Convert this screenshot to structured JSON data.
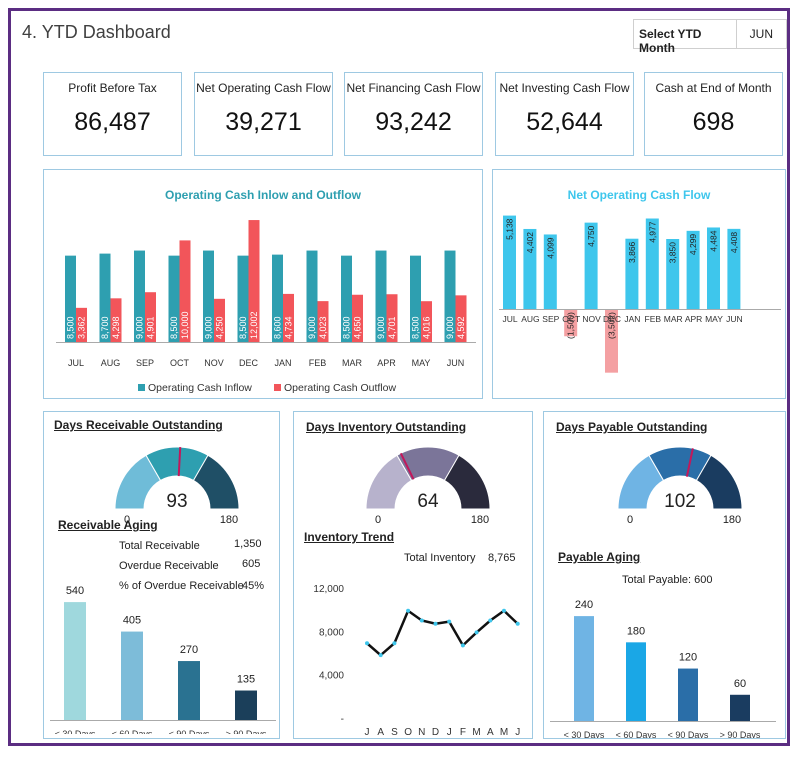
{
  "header": {
    "title": "4. YTD Dashboard",
    "select_label": "Select YTD Month",
    "selected_month": "JUN"
  },
  "kpis": [
    {
      "label": "Profit Before Tax",
      "value": "86,487"
    },
    {
      "label": "Net Operating Cash Flow",
      "value": "39,271"
    },
    {
      "label": "Net Financing Cash Flow",
      "value": "93,242"
    },
    {
      "label": "Net Investing Cash Flow",
      "value": "52,644"
    },
    {
      "label": "Cash at End of Month",
      "value": "698"
    }
  ],
  "colors": {
    "teal": "#2e9fb0",
    "red": "#f2555a",
    "cyan": "#3ec6ec",
    "pink": "#f4a0a2",
    "frame": "#5b2d82"
  },
  "chart_data": [
    {
      "type": "bar",
      "title": "Operating Cash Inlow and Outflow",
      "categories": [
        "JUL",
        "AUG",
        "SEP",
        "OCT",
        "NOV",
        "DEC",
        "JAN",
        "FEB",
        "MAR",
        "APR",
        "MAY",
        "JUN"
      ],
      "series": [
        {
          "name": "Operating Cash Inflow",
          "values": [
            8500,
            8700,
            9000,
            8500,
            9000,
            8500,
            8600,
            9000,
            8500,
            9000,
            8500,
            9000
          ],
          "labels": [
            "8,500",
            "8,700",
            "9,000",
            "8,500",
            "9,000",
            "8,500",
            "8,600",
            "9,000",
            "8,500",
            "9,000",
            "8,500",
            "9,000"
          ]
        },
        {
          "name": "Operating Cash Outflow",
          "values": [
            3362,
            4298,
            4901,
            10000,
            4250,
            12002,
            4734,
            4023,
            4650,
            4701,
            4016,
            4592
          ],
          "labels": [
            "3,362",
            "4,298",
            "4,901",
            "10,000",
            "4,250",
            "12,002",
            "4,734",
            "4,023",
            "4,650",
            "4,701",
            "4,016",
            "4,592"
          ]
        }
      ],
      "ylim": [
        0,
        12500
      ],
      "legend": "bottom"
    },
    {
      "type": "bar",
      "title": "Net Operating Cash Flow",
      "categories": [
        "JUL",
        "AUG",
        "SEP",
        "OCT",
        "NOV",
        "DEC",
        "JAN",
        "FEB",
        "MAR",
        "APR",
        "MAY",
        "JUN"
      ],
      "values": [
        5138,
        4402,
        4099,
        -1500,
        4750,
        -3502,
        3866,
        4977,
        3850,
        4299,
        4484,
        4408
      ],
      "labels": [
        "5,138",
        "4,402",
        "4,099",
        "(1,500)",
        "4,750",
        "(3,502)",
        "3,866",
        "4,977",
        "3,850",
        "4,299",
        "4,484",
        "4,408"
      ],
      "ylim": [
        -4000,
        5500
      ]
    },
    {
      "type": "bar",
      "title": "Receivable Aging",
      "categories": [
        "< 30 Days",
        "< 60 Days",
        "< 90 Days",
        "> 90 Days"
      ],
      "values": [
        540,
        405,
        270,
        135
      ],
      "labels": [
        "540",
        "405",
        "270",
        "135"
      ],
      "colors": [
        "#9fd8dd",
        "#7dbcd9",
        "#2a7291",
        "#1b3f5a"
      ],
      "ylim": [
        0,
        600
      ]
    },
    {
      "type": "line",
      "title": "Inventory Trend",
      "x": [
        "J",
        "A",
        "S",
        "O",
        "N",
        "D",
        "J",
        "F",
        "M",
        "A",
        "M",
        "J"
      ],
      "values": [
        6900,
        5800,
        6900,
        9900,
        9000,
        8700,
        8900,
        6700,
        7900,
        9000,
        9900,
        8700
      ],
      "yticks": [
        "12,000",
        "8,000",
        "4,000",
        "-"
      ],
      "ylim": [
        0,
        12000
      ]
    },
    {
      "type": "bar",
      "title": "Payable Aging",
      "categories": [
        "< 30 Days",
        "< 60 Days",
        "< 90 Days",
        "> 90 Days"
      ],
      "values": [
        240,
        180,
        120,
        60
      ],
      "labels": [
        "240",
        "180",
        "120",
        "60"
      ],
      "colors": [
        "#6fb4e4",
        "#1aa7e6",
        "#2a6ea8",
        "#1a3c60"
      ],
      "ylim": [
        0,
        270
      ]
    }
  ],
  "dro": {
    "title": "Days Receivable Outstanding",
    "value": "93",
    "min": "0",
    "max": "180",
    "aging_title": "Receivable Aging",
    "stats": [
      {
        "label": "Total Receivable",
        "value": "1,350"
      },
      {
        "label": "Overdue Receivable",
        "value": "605"
      },
      {
        "label": "% of Overdue Receivable",
        "value": "45%"
      }
    ]
  },
  "dio": {
    "title": "Days Inventory Outstanding",
    "value": "64",
    "min": "0",
    "max": "180",
    "trend_title": "Inventory Trend",
    "total_label": "Total Inventory",
    "total_value": "8,765"
  },
  "dpo": {
    "title": "Days Payable Outstanding",
    "value": "102",
    "min": "0",
    "max": "180",
    "aging_title": "Payable Aging",
    "total_text": "Total Payable: 600"
  }
}
